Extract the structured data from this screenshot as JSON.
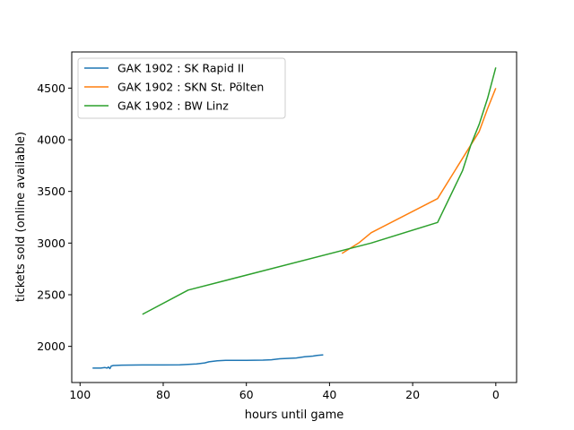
{
  "chart_data": {
    "type": "line",
    "title": "",
    "xlabel": "hours until game",
    "ylabel": "tickets sold (online available)",
    "xlim": [
      102,
      -5
    ],
    "ylim": [
      1650,
      4850
    ],
    "x_ticks": [
      100,
      80,
      60,
      40,
      20,
      0
    ],
    "y_ticks": [
      2000,
      2500,
      3000,
      3500,
      4000,
      4500
    ],
    "grid": false,
    "legend_position": "top-left",
    "series": [
      {
        "name": "GAK 1902 : SK Rapid II",
        "color": "#1f77b4",
        "points": [
          [
            97,
            1790
          ],
          [
            95,
            1790
          ],
          [
            94,
            1795
          ],
          [
            93.5,
            1790
          ],
          [
            93.2,
            1800
          ],
          [
            92.8,
            1785
          ],
          [
            92.5,
            1810
          ],
          [
            92,
            1815
          ],
          [
            90,
            1818
          ],
          [
            85,
            1820
          ],
          [
            80,
            1820
          ],
          [
            76,
            1822
          ],
          [
            74,
            1825
          ],
          [
            72,
            1830
          ],
          [
            70,
            1840
          ],
          [
            69,
            1850
          ],
          [
            67,
            1860
          ],
          [
            65,
            1865
          ],
          [
            60,
            1865
          ],
          [
            56,
            1867
          ],
          [
            54,
            1870
          ],
          [
            52,
            1880
          ],
          [
            48,
            1888
          ],
          [
            46,
            1900
          ],
          [
            44,
            1906
          ],
          [
            43,
            1912
          ],
          [
            41.5,
            1918
          ]
        ]
      },
      {
        "name": "GAK 1902 : SKN St. Pölten",
        "color": "#ff7f0e",
        "points": [
          [
            37,
            2900
          ],
          [
            33,
            3000
          ],
          [
            30,
            3100
          ],
          [
            14,
            3430
          ],
          [
            8,
            3820
          ],
          [
            6,
            3950
          ],
          [
            4,
            4080
          ],
          [
            2,
            4300
          ],
          [
            0,
            4500
          ]
        ]
      },
      {
        "name": "GAK 1902 : BW Linz",
        "color": "#2ca02c",
        "points": [
          [
            85,
            2310
          ],
          [
            74,
            2545
          ],
          [
            30,
            3000
          ],
          [
            14,
            3200
          ],
          [
            8,
            3700
          ],
          [
            6,
            3950
          ],
          [
            4,
            4150
          ],
          [
            2,
            4400
          ],
          [
            0,
            4700
          ]
        ]
      }
    ]
  }
}
